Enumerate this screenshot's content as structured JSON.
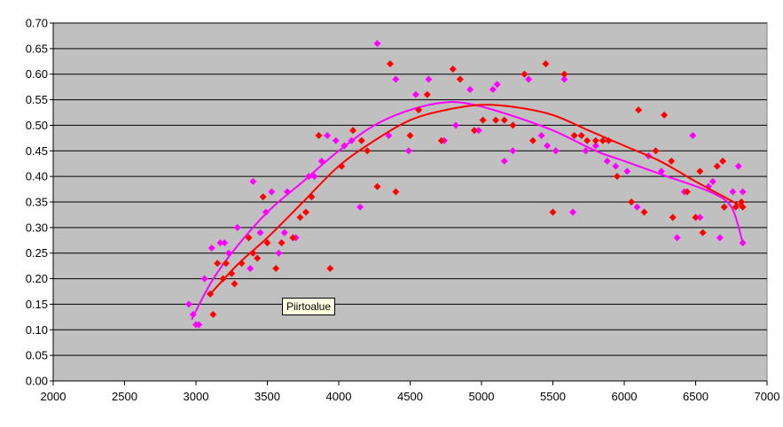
{
  "tooltip": {
    "text": "Piirtoalue"
  },
  "chart_data": {
    "type": "scatter",
    "xlim": [
      2000,
      7000
    ],
    "ylim": [
      0.0,
      0.7
    ],
    "x_ticks": [
      2000,
      2500,
      3000,
      3500,
      4000,
      4500,
      5000,
      5500,
      6000,
      6500,
      7000
    ],
    "y_ticks": [
      0.0,
      0.05,
      0.1,
      0.15,
      0.2,
      0.25,
      0.3,
      0.35,
      0.4,
      0.45,
      0.5,
      0.55,
      0.6,
      0.65,
      0.7
    ],
    "grid": true,
    "plot_background": "#c0c0c0",
    "series": [
      {
        "color": "#ff00ff",
        "marker": "diamond",
        "points": [
          [
            2950,
            0.15
          ],
          [
            2980,
            0.13
          ],
          [
            3000,
            0.11
          ],
          [
            3020,
            0.11
          ],
          [
            3060,
            0.2
          ],
          [
            3110,
            0.26
          ],
          [
            3170,
            0.27
          ],
          [
            3200,
            0.27
          ],
          [
            3230,
            0.25
          ],
          [
            3290,
            0.3
          ],
          [
            3380,
            0.22
          ],
          [
            3400,
            0.39
          ],
          [
            3450,
            0.29
          ],
          [
            3490,
            0.33
          ],
          [
            3530,
            0.37
          ],
          [
            3580,
            0.25
          ],
          [
            3620,
            0.29
          ],
          [
            3640,
            0.37
          ],
          [
            3700,
            0.28
          ],
          [
            3790,
            0.4
          ],
          [
            3830,
            0.4
          ],
          [
            3880,
            0.43
          ],
          [
            3920,
            0.48
          ],
          [
            3980,
            0.47
          ],
          [
            4040,
            0.46
          ],
          [
            4090,
            0.47
          ],
          [
            4150,
            0.34
          ],
          [
            4270,
            0.66
          ],
          [
            4350,
            0.48
          ],
          [
            4400,
            0.59
          ],
          [
            4490,
            0.45
          ],
          [
            4540,
            0.56
          ],
          [
            4630,
            0.59
          ],
          [
            4740,
            0.47
          ],
          [
            4820,
            0.5
          ],
          [
            4920,
            0.57
          ],
          [
            4980,
            0.49
          ],
          [
            5080,
            0.57
          ],
          [
            5110,
            0.58
          ],
          [
            5160,
            0.43
          ],
          [
            5220,
            0.45
          ],
          [
            5330,
            0.59
          ],
          [
            5420,
            0.48
          ],
          [
            5460,
            0.46
          ],
          [
            5520,
            0.45
          ],
          [
            5580,
            0.59
          ],
          [
            5640,
            0.33
          ],
          [
            5730,
            0.45
          ],
          [
            5800,
            0.46
          ],
          [
            5880,
            0.43
          ],
          [
            5940,
            0.42
          ],
          [
            6020,
            0.41
          ],
          [
            6090,
            0.34
          ],
          [
            6170,
            0.44
          ],
          [
            6260,
            0.41
          ],
          [
            6370,
            0.28
          ],
          [
            6420,
            0.37
          ],
          [
            6480,
            0.48
          ],
          [
            6530,
            0.32
          ],
          [
            6590,
            0.38
          ],
          [
            6620,
            0.39
          ],
          [
            6670,
            0.28
          ],
          [
            6760,
            0.37
          ],
          [
            6800,
            0.42
          ],
          [
            6830,
            0.37
          ],
          [
            6830,
            0.27
          ]
        ],
        "trend": [
          [
            2970,
            0.12
          ],
          [
            3100,
            0.19
          ],
          [
            3250,
            0.25
          ],
          [
            3500,
            0.33
          ],
          [
            3750,
            0.39
          ],
          [
            4000,
            0.45
          ],
          [
            4250,
            0.5
          ],
          [
            4500,
            0.53
          ],
          [
            4750,
            0.545
          ],
          [
            4950,
            0.54
          ],
          [
            5200,
            0.52
          ],
          [
            5500,
            0.49
          ],
          [
            5800,
            0.45
          ],
          [
            6000,
            0.43
          ],
          [
            6300,
            0.4
          ],
          [
            6600,
            0.37
          ],
          [
            6750,
            0.34
          ],
          [
            6830,
            0.27
          ]
        ]
      },
      {
        "color": "#ff0000",
        "marker": "diamond",
        "points": [
          [
            3100,
            0.17
          ],
          [
            3120,
            0.13
          ],
          [
            3150,
            0.23
          ],
          [
            3190,
            0.2
          ],
          [
            3210,
            0.23
          ],
          [
            3250,
            0.21
          ],
          [
            3270,
            0.19
          ],
          [
            3320,
            0.23
          ],
          [
            3370,
            0.28
          ],
          [
            3400,
            0.25
          ],
          [
            3430,
            0.24
          ],
          [
            3470,
            0.36
          ],
          [
            3500,
            0.27
          ],
          [
            3560,
            0.22
          ],
          [
            3600,
            0.27
          ],
          [
            3680,
            0.28
          ],
          [
            3730,
            0.32
          ],
          [
            3770,
            0.33
          ],
          [
            3810,
            0.36
          ],
          [
            3860,
            0.48
          ],
          [
            3940,
            0.22
          ],
          [
            4020,
            0.42
          ],
          [
            4100,
            0.49
          ],
          [
            4160,
            0.47
          ],
          [
            4200,
            0.45
          ],
          [
            4270,
            0.38
          ],
          [
            4360,
            0.62
          ],
          [
            4400,
            0.37
          ],
          [
            4500,
            0.48
          ],
          [
            4560,
            0.53
          ],
          [
            4620,
            0.56
          ],
          [
            4720,
            0.47
          ],
          [
            4800,
            0.61
          ],
          [
            4850,
            0.59
          ],
          [
            4950,
            0.49
          ],
          [
            5010,
            0.51
          ],
          [
            5100,
            0.51
          ],
          [
            5160,
            0.51
          ],
          [
            5220,
            0.5
          ],
          [
            5300,
            0.6
          ],
          [
            5360,
            0.47
          ],
          [
            5450,
            0.62
          ],
          [
            5500,
            0.33
          ],
          [
            5580,
            0.6
          ],
          [
            5650,
            0.48
          ],
          [
            5700,
            0.48
          ],
          [
            5740,
            0.47
          ],
          [
            5800,
            0.47
          ],
          [
            5850,
            0.47
          ],
          [
            5890,
            0.47
          ],
          [
            5950,
            0.4
          ],
          [
            6050,
            0.35
          ],
          [
            6100,
            0.53
          ],
          [
            6140,
            0.33
          ],
          [
            6220,
            0.45
          ],
          [
            6280,
            0.52
          ],
          [
            6330,
            0.43
          ],
          [
            6340,
            0.32
          ],
          [
            6440,
            0.37
          ],
          [
            6500,
            0.32
          ],
          [
            6530,
            0.41
          ],
          [
            6550,
            0.29
          ],
          [
            6650,
            0.42
          ],
          [
            6690,
            0.43
          ],
          [
            6700,
            0.34
          ],
          [
            6780,
            0.34
          ],
          [
            6820,
            0.35
          ],
          [
            6830,
            0.34
          ]
        ],
        "trend": [
          [
            3100,
            0.17
          ],
          [
            3300,
            0.23
          ],
          [
            3500,
            0.28
          ],
          [
            3750,
            0.35
          ],
          [
            4000,
            0.42
          ],
          [
            4250,
            0.47
          ],
          [
            4500,
            0.51
          ],
          [
            4750,
            0.53
          ],
          [
            5000,
            0.54
          ],
          [
            5250,
            0.535
          ],
          [
            5500,
            0.52
          ],
          [
            5750,
            0.49
          ],
          [
            6000,
            0.46
          ],
          [
            6250,
            0.43
          ],
          [
            6500,
            0.39
          ],
          [
            6700,
            0.36
          ],
          [
            6830,
            0.34
          ]
        ]
      }
    ]
  }
}
